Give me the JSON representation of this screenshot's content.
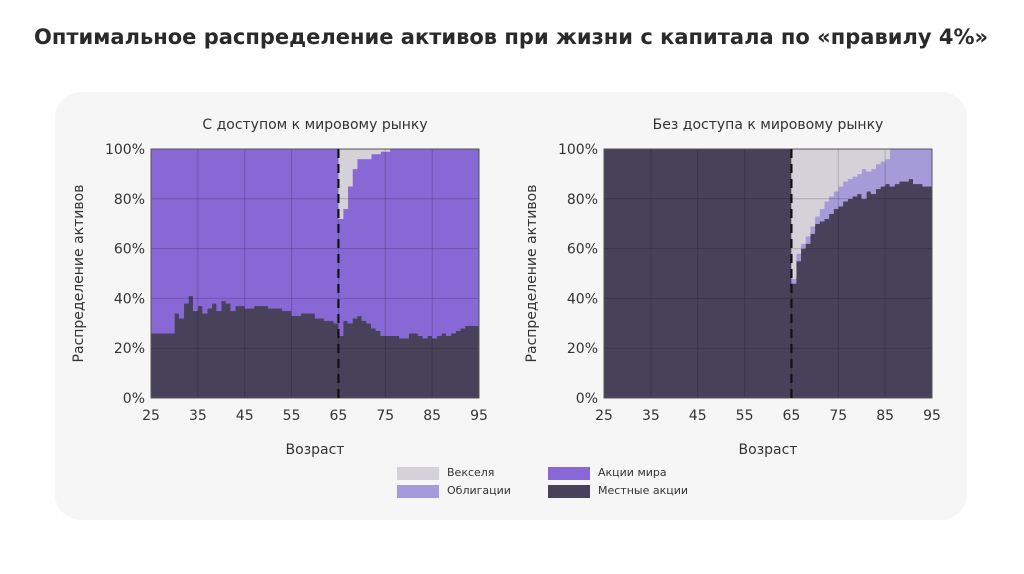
{
  "title": "Оптимальное распределение активов при жизни с капитала по «правилу 4%»",
  "legend": [
    {
      "label": "Векселя",
      "color": "#d4d1d8"
    },
    {
      "label": "Облигации",
      "color": "#a69bd9"
    },
    {
      "label": "Акции мира",
      "color": "#8868d4"
    },
    {
      "label": "Местные акции",
      "color": "#47415a"
    }
  ],
  "chart_data": [
    {
      "type": "area",
      "title": "С доступом к мировому рынку",
      "xlabel": "Возраст",
      "ylabel": "Распределение активов",
      "xlim": [
        25,
        95
      ],
      "ylim": [
        0,
        100
      ],
      "xticks": [
        25,
        35,
        45,
        55,
        65,
        75,
        85,
        95
      ],
      "yticks": [
        "0%",
        "20%",
        "40%",
        "60%",
        "80%",
        "100%"
      ],
      "vline": 65,
      "x": [
        25,
        27,
        29,
        30,
        31,
        32,
        33,
        34,
        35,
        36,
        37,
        38,
        39,
        40,
        41,
        42,
        43,
        45,
        47,
        50,
        53,
        55,
        57,
        60,
        62,
        64,
        65,
        66,
        67,
        68,
        69,
        70,
        71,
        72,
        73,
        74,
        76,
        78,
        80,
        82,
        83,
        84,
        85,
        86,
        87,
        88,
        89,
        90,
        91,
        92,
        95
      ],
      "series": [
        {
          "name": "Местные акции",
          "values": [
            26,
            26,
            26,
            34,
            32,
            38,
            41,
            35,
            37,
            34,
            36,
            38,
            35,
            39,
            38,
            35,
            37,
            36,
            37,
            36,
            35,
            33,
            34,
            32,
            31,
            30,
            25,
            31,
            30,
            32,
            33,
            31,
            30,
            28,
            27,
            25,
            25,
            24,
            26,
            25,
            24,
            25,
            24,
            25,
            26,
            25,
            26,
            27,
            28,
            29,
            29
          ]
        },
        {
          "name": "Акции мира",
          "values": [
            74,
            74,
            74,
            66,
            68,
            62,
            59,
            65,
            63,
            66,
            64,
            62,
            65,
            61,
            62,
            65,
            63,
            64,
            63,
            64,
            65,
            67,
            66,
            68,
            69,
            70,
            47,
            45,
            55,
            60,
            63,
            65,
            66,
            70,
            71,
            74,
            75,
            76,
            74,
            75,
            76,
            75,
            76,
            75,
            74,
            75,
            74,
            73,
            72,
            71,
            71
          ]
        },
        {
          "name": "Облигации",
          "values": [
            0,
            0,
            0,
            0,
            0,
            0,
            0,
            0,
            0,
            0,
            0,
            0,
            0,
            0,
            0,
            0,
            0,
            0,
            0,
            0,
            0,
            0,
            0,
            0,
            0,
            0,
            0,
            0,
            0,
            0,
            0,
            0,
            0,
            0,
            0,
            0,
            0,
            0,
            0,
            0,
            0,
            0,
            0,
            0,
            0,
            0,
            0,
            0,
            0,
            0,
            0
          ]
        },
        {
          "name": "Векселя",
          "values": [
            0,
            0,
            0,
            0,
            0,
            0,
            0,
            0,
            0,
            0,
            0,
            0,
            0,
            0,
            0,
            0,
            0,
            0,
            0,
            0,
            0,
            0,
            0,
            0,
            0,
            0,
            28,
            24,
            15,
            8,
            4,
            4,
            4,
            2,
            2,
            1,
            0,
            0,
            0,
            0,
            0,
            0,
            0,
            0,
            0,
            0,
            0,
            0,
            0,
            0,
            0
          ]
        }
      ]
    },
    {
      "type": "area",
      "title": "Без доступа к мировому рынку",
      "xlabel": "Возраст",
      "ylabel": "Распределение активов",
      "xlim": [
        25,
        95
      ],
      "ylim": [
        0,
        100
      ],
      "xticks": [
        25,
        35,
        45,
        55,
        65,
        75,
        85,
        95
      ],
      "yticks": [
        "0%",
        "20%",
        "40%",
        "60%",
        "80%",
        "100%"
      ],
      "vline": 65,
      "x": [
        25,
        45,
        65,
        66,
        67,
        68,
        69,
        70,
        71,
        72,
        73,
        74,
        75,
        76,
        77,
        78,
        79,
        80,
        81,
        82,
        83,
        84,
        85,
        86,
        87,
        88,
        89,
        90,
        91,
        93,
        95
      ],
      "series": [
        {
          "name": "Местные акции",
          "values": [
            100,
            100,
            46,
            55,
            60,
            62,
            66,
            70,
            71,
            72,
            74,
            76,
            77,
            79,
            80,
            81,
            82,
            80,
            83,
            82,
            84,
            85,
            86,
            85,
            86,
            87,
            87,
            88,
            86,
            85,
            85
          ]
        },
        {
          "name": "Акции мира",
          "values": [
            0,
            0,
            0,
            0,
            0,
            0,
            0,
            0,
            0,
            0,
            0,
            0,
            0,
            0,
            0,
            0,
            0,
            0,
            0,
            0,
            0,
            0,
            0,
            0,
            0,
            0,
            0,
            0,
            0,
            0,
            0
          ]
        },
        {
          "name": "Облигации",
          "values": [
            0,
            0,
            2,
            3,
            2,
            3,
            3,
            3,
            5,
            7,
            7,
            7,
            8,
            8,
            8,
            8,
            8,
            12,
            8,
            10,
            10,
            10,
            10,
            15,
            14,
            13,
            13,
            12,
            14,
            15,
            15
          ]
        },
        {
          "name": "Векселя",
          "values": [
            0,
            0,
            52,
            42,
            38,
            35,
            31,
            27,
            24,
            21,
            19,
            17,
            15,
            13,
            12,
            11,
            10,
            8,
            9,
            8,
            6,
            5,
            4,
            0,
            0,
            0,
            0,
            0,
            0,
            0,
            0
          ]
        }
      ]
    }
  ]
}
